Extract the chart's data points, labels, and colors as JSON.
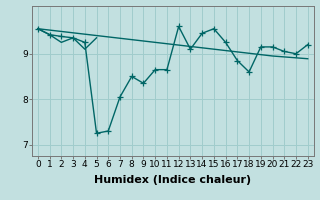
{
  "title": "",
  "xlabel": "Humidex (Indice chaleur)",
  "ylabel": "",
  "bg_color": "#c2e0e0",
  "grid_color": "#a0cccc",
  "line_color": "#006666",
  "x": [
    0,
    1,
    2,
    3,
    4,
    5,
    6,
    7,
    8,
    9,
    10,
    11,
    12,
    13,
    14,
    15,
    16,
    17,
    18,
    19,
    20,
    21,
    22,
    23
  ],
  "y_main": [
    9.55,
    9.42,
    9.38,
    9.35,
    9.25,
    7.25,
    7.3,
    8.05,
    8.5,
    8.35,
    8.65,
    8.65,
    9.6,
    9.1,
    9.45,
    9.55,
    9.25,
    8.85,
    8.6,
    9.15,
    9.15,
    9.05,
    9.0,
    9.2
  ],
  "y_trend": [
    9.55,
    9.52,
    9.49,
    9.46,
    9.43,
    9.4,
    9.37,
    9.34,
    9.31,
    9.28,
    9.25,
    9.22,
    9.19,
    9.16,
    9.13,
    9.1,
    9.07,
    9.04,
    9.01,
    8.98,
    8.95,
    8.93,
    8.91,
    8.89
  ],
  "y_extra": [
    9.55,
    9.42,
    9.25,
    9.35,
    9.1,
    9.35,
    9.32,
    9.28,
    9.24,
    9.2,
    9.16,
    9.12,
    9.09,
    9.06,
    9.03,
    9.1,
    9.07,
    9.04,
    9.01,
    9.01,
    9.01,
    8.99,
    8.97,
    8.95
  ],
  "ylim": [
    6.75,
    10.05
  ],
  "yticks": [
    7,
    8,
    9
  ],
  "xticks": [
    0,
    1,
    2,
    3,
    4,
    5,
    6,
    7,
    8,
    9,
    10,
    11,
    12,
    13,
    14,
    15,
    16,
    17,
    18,
    19,
    20,
    21,
    22,
    23
  ],
  "xticklabels": [
    "0",
    "1",
    "2",
    "3",
    "4",
    "5",
    "6",
    "7",
    "8",
    "9",
    "10",
    "11",
    "12",
    "13",
    "14",
    "15",
    "16",
    "17",
    "18",
    "19",
    "20",
    "21",
    "22",
    "23"
  ],
  "marker": "+",
  "markersize": 4,
  "linewidth": 1.0,
  "tick_fontsize": 6.5,
  "xlabel_fontsize": 8
}
